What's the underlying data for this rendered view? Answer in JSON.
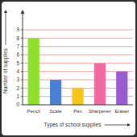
{
  "chart_data": {
    "type": "bar",
    "x_label": "Types of school supplies",
    "y_label": "Number of supplies",
    "categories": [
      "Pencil",
      "Scale",
      "Pen",
      "Sharpener",
      "Eraser"
    ],
    "values": [
      8,
      3,
      2,
      5,
      4
    ],
    "colors": [
      "#8ee02c",
      "#4a7fd6",
      "#f7c41a",
      "#f26aa0",
      "#9a5ad2"
    ],
    "ylim": [
      0,
      9
    ],
    "yticks": [
      0,
      1,
      2,
      3,
      4,
      5,
      6,
      7,
      8,
      9
    ],
    "grid": true
  }
}
